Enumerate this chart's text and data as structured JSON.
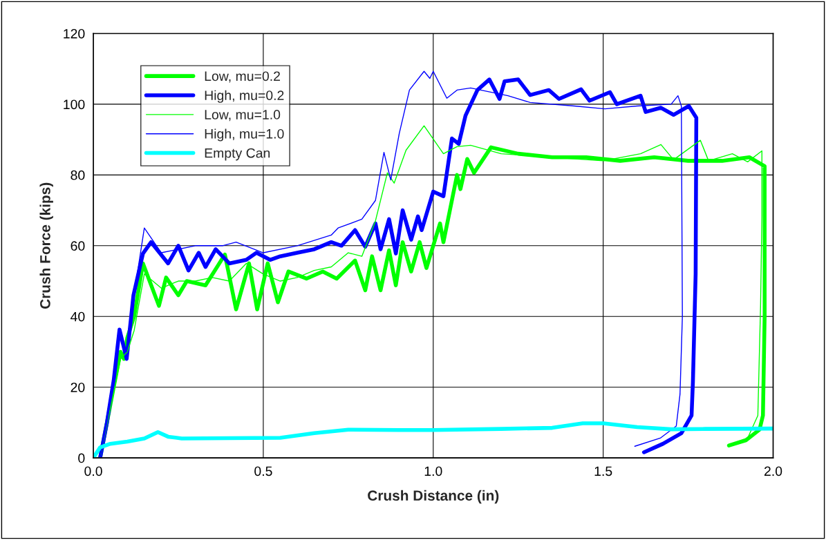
{
  "chart_data": {
    "type": "line",
    "xlabel": "Crush Distance (in)",
    "ylabel": "Crush Force (kips)",
    "xlim": [
      0,
      2
    ],
    "xticks": [
      {
        "value": 0,
        "label": "0.0"
      },
      {
        "value": 0.5,
        "label": "0.5"
      },
      {
        "value": 1,
        "label": "1.0"
      },
      {
        "value": 1.5,
        "label": "1.5"
      },
      {
        "value": 2,
        "label": "2.0"
      }
    ],
    "ylim": [
      0,
      120
    ],
    "yticks": [
      0,
      20,
      40,
      60,
      80,
      100,
      120
    ],
    "grid": true,
    "legend": "top left",
    "marker": "none",
    "line_style": "solid",
    "series": [
      {
        "name": "Low, mu=0.2",
        "color": "#00ff00",
        "x": [
          0.02,
          0.05,
          0.07,
          0.08,
          0.09,
          0.1,
          0.12,
          0.146,
          0.193,
          0.214,
          0.25,
          0.275,
          0.33,
          0.387,
          0.42,
          0.458,
          0.482,
          0.513,
          0.543,
          0.574,
          0.627,
          0.675,
          0.716,
          0.77,
          0.8,
          0.82,
          0.845,
          0.87,
          0.89,
          0.91,
          0.935,
          0.96,
          0.98,
          1.02,
          1.03,
          1.07,
          1.08,
          1.1,
          1.12,
          1.17,
          1.25,
          1.35,
          1.45,
          1.55,
          1.65,
          1.75,
          1.85,
          1.93,
          1.975,
          1.975,
          1.97,
          1.96,
          1.92,
          1.87
        ],
        "values": [
          0,
          15,
          25,
          30,
          28,
          34,
          40,
          55,
          43,
          51,
          46,
          50,
          48.8,
          57.5,
          42,
          55,
          42,
          55,
          44,
          52.7,
          50.7,
          52.7,
          50.7,
          55.8,
          47.4,
          57,
          47.4,
          58.7,
          48.8,
          61,
          52.7,
          61,
          53.7,
          66.3,
          61,
          80,
          76,
          84.5,
          80.6,
          87.8,
          86,
          85,
          85,
          84,
          85,
          84,
          84,
          85,
          82.5,
          40,
          12,
          8,
          5,
          3.5
        ]
      },
      {
        "name": "High, mu=0.2",
        "color": "#0000ff",
        "x": [
          0.02,
          0.04,
          0.06,
          0.077,
          0.098,
          0.118,
          0.146,
          0.17,
          0.22,
          0.25,
          0.28,
          0.31,
          0.33,
          0.36,
          0.4,
          0.45,
          0.48,
          0.52,
          0.55,
          0.6,
          0.65,
          0.7,
          0.73,
          0.77,
          0.8,
          0.83,
          0.845,
          0.87,
          0.89,
          0.91,
          0.935,
          0.955,
          0.966,
          1.0,
          1.03,
          1.055,
          1.075,
          1.095,
          1.13,
          1.165,
          1.195,
          1.21,
          1.25,
          1.285,
          1.34,
          1.37,
          1.435,
          1.46,
          1.52,
          1.54,
          1.61,
          1.625,
          1.67,
          1.707,
          1.752,
          1.774,
          1.772,
          1.764,
          1.76,
          1.73,
          1.676,
          1.62
        ],
        "values": [
          0,
          10,
          22,
          36.3,
          28,
          46,
          57.8,
          61,
          55,
          60,
          53,
          58,
          54,
          59,
          55,
          56,
          58,
          56,
          57,
          58,
          59,
          61,
          60,
          64.4,
          59.7,
          66.3,
          59,
          67.5,
          57.8,
          70,
          61.7,
          68.3,
          64.4,
          75.3,
          74,
          90.3,
          88.8,
          96.8,
          104,
          107,
          101.5,
          106.5,
          107,
          102.6,
          104,
          101.5,
          104.2,
          101,
          103.4,
          100,
          102.4,
          97.8,
          99,
          97,
          99.5,
          96.2,
          52,
          21.5,
          12,
          7,
          4,
          1.6
        ]
      },
      {
        "name": "Low, mu=1.0",
        "color": "#00ff00",
        "x": [
          0.02,
          0.05,
          0.08,
          0.1,
          0.12,
          0.15,
          0.2,
          0.25,
          0.3,
          0.35,
          0.4,
          0.45,
          0.5,
          0.55,
          0.6,
          0.65,
          0.7,
          0.75,
          0.79,
          0.83,
          0.865,
          0.885,
          0.92,
          0.973,
          1.03,
          1.07,
          1.11,
          1.2,
          1.35,
          1.5,
          1.61,
          1.67,
          1.707,
          1.786,
          1.81,
          1.88,
          1.925,
          1.967,
          1.967,
          1.963,
          1.955,
          1.925,
          1.88
        ],
        "values": [
          0,
          14,
          28,
          30,
          36,
          52,
          48,
          50,
          50,
          51,
          50,
          55,
          52,
          50,
          51,
          53,
          54,
          58,
          57,
          67,
          80.6,
          77.7,
          87,
          93.9,
          86,
          88,
          88.4,
          86,
          85,
          84,
          86,
          88.6,
          84.3,
          89.8,
          84,
          86,
          83.7,
          86.8,
          68.5,
          43,
          12,
          5.6,
          4
        ]
      },
      {
        "name": "High, mu=1.0",
        "color": "#0000ff",
        "x": [
          0.02,
          0.04,
          0.06,
          0.077,
          0.098,
          0.118,
          0.15,
          0.2,
          0.3,
          0.38,
          0.42,
          0.5,
          0.6,
          0.7,
          0.72,
          0.79,
          0.83,
          0.855,
          0.875,
          0.9,
          0.93,
          0.973,
          0.99,
          1.0,
          1.04,
          1.07,
          1.11,
          1.22,
          1.285,
          1.415,
          1.505,
          1.6,
          1.7,
          1.72,
          1.73,
          1.733,
          1.726,
          1.715,
          1.668,
          1.593
        ],
        "values": [
          0,
          10,
          22,
          35,
          30,
          45,
          65,
          58,
          60,
          60,
          61,
          58,
          60,
          63,
          65,
          67.5,
          72.8,
          86.4,
          78.6,
          91.7,
          104,
          109.3,
          107.3,
          109.3,
          101.7,
          104,
          104.6,
          102.4,
          100.5,
          99.5,
          98.7,
          99.5,
          100,
          102.4,
          99.5,
          40,
          18,
          9,
          5.6,
          3.3
        ]
      },
      {
        "name": "Empty Can",
        "color": "#00ffff",
        "x": [
          0,
          0.02,
          0.05,
          0.1,
          0.15,
          0.19,
          0.22,
          0.26,
          0.4,
          0.55,
          0.65,
          0.75,
          0.9,
          1.0,
          1.2,
          1.35,
          1.44,
          1.5,
          1.6,
          1.7,
          1.8,
          2.0
        ],
        "values": [
          0,
          3,
          4,
          4.6,
          5.5,
          7.3,
          6,
          5.5,
          5.6,
          5.7,
          7,
          8,
          7.9,
          7.9,
          8.2,
          8.5,
          9.8,
          9.8,
          8.7,
          8.1,
          8.2,
          8.3
        ]
      }
    ]
  }
}
